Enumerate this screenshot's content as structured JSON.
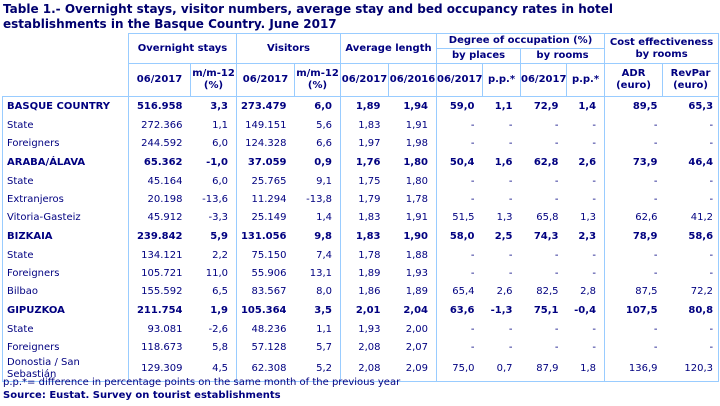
{
  "chart_data": {
    "type": "table",
    "title": "Table 1.- Overnight stays, visitor numbers, average stay and bed occupancy rates in hotel establishments in the Basque Country. June 2017",
    "header": {
      "overnight_stays": "Overnight stays",
      "visitors": "Visitors",
      "average_length": "Average length",
      "occupation": "Degree of occupation (%)",
      "by_places": "by places",
      "by_rooms": "by rooms",
      "cost_effectiveness": "Cost effectiveness by rooms",
      "col_062017": "06/2017",
      "col_mm12": "m/m-12 (%)",
      "col_062016": "06/2016",
      "col_pp": "p.p.*",
      "adr": "ADR (euro)",
      "revpar": "RevPar (euro)"
    },
    "columns": [
      "",
      "Overnight stays 06/2017",
      "Overnight stays m/m-12 (%)",
      "Visitors 06/2017",
      "Visitors m/m-12 (%)",
      "Average length 06/2017",
      "Average length 06/2016",
      "Occupation by places 06/2017",
      "Occupation by places p.p.*",
      "Occupation by rooms 06/2017",
      "Occupation by rooms p.p.*",
      "ADR (euro)",
      "RevPar (euro)"
    ],
    "rows": [
      {
        "label": "BASQUE COUNTRY",
        "bold": true,
        "values": [
          "516.958",
          "3,3",
          "273.479",
          "6,0",
          "1,89",
          "1,94",
          "59,0",
          "1,1",
          "72,9",
          "1,4",
          "89,5",
          "65,3"
        ]
      },
      {
        "label": "State",
        "bold": false,
        "values": [
          "272.366",
          "1,1",
          "149.151",
          "5,6",
          "1,83",
          "1,91",
          "-",
          "-",
          "-",
          "-",
          "-",
          "-"
        ]
      },
      {
        "label": "Foreigners",
        "bold": false,
        "values": [
          "244.592",
          "6,0",
          "124.328",
          "6,6",
          "1,97",
          "1,98",
          "-",
          "-",
          "-",
          "-",
          "-",
          "-"
        ]
      },
      {
        "label": "ARABA/ÁLAVA",
        "bold": true,
        "values": [
          "65.362",
          "-1,0",
          "37.059",
          "0,9",
          "1,76",
          "1,80",
          "50,4",
          "1,6",
          "62,8",
          "2,6",
          "73,9",
          "46,4"
        ]
      },
      {
        "label": "State",
        "bold": false,
        "values": [
          "45.164",
          "6,0",
          "25.765",
          "9,1",
          "1,75",
          "1,80",
          "-",
          "-",
          "-",
          "-",
          "-",
          "-"
        ]
      },
      {
        "label": "Extranjeros",
        "bold": false,
        "values": [
          "20.198",
          "-13,6",
          "11.294",
          "-13,8",
          "1,79",
          "1,78",
          "-",
          "-",
          "-",
          "-",
          "-",
          "-"
        ]
      },
      {
        "label": "Vitoria-Gasteiz",
        "bold": false,
        "values": [
          "45.912",
          "-3,3",
          "25.149",
          "1,4",
          "1,83",
          "1,91",
          "51,5",
          "1,3",
          "65,8",
          "1,3",
          "62,6",
          "41,2"
        ]
      },
      {
        "label": "BIZKAIA",
        "bold": true,
        "values": [
          "239.842",
          "5,9",
          "131.056",
          "9,8",
          "1,83",
          "1,90",
          "58,0",
          "2,5",
          "74,3",
          "2,3",
          "78,9",
          "58,6"
        ]
      },
      {
        "label": "State",
        "bold": false,
        "values": [
          "134.121",
          "2,2",
          "75.150",
          "7,4",
          "1,78",
          "1,88",
          "-",
          "-",
          "-",
          "-",
          "-",
          "-"
        ]
      },
      {
        "label": "Foreigners",
        "bold": false,
        "values": [
          "105.721",
          "11,0",
          "55.906",
          "13,1",
          "1,89",
          "1,93",
          "-",
          "-",
          "-",
          "-",
          "-",
          "-"
        ]
      },
      {
        "label": "Bilbao",
        "bold": false,
        "values": [
          "155.592",
          "6,5",
          "83.567",
          "8,0",
          "1,86",
          "1,89",
          "65,4",
          "2,6",
          "82,5",
          "2,8",
          "87,5",
          "72,2"
        ]
      },
      {
        "label": "GIPUZKOA",
        "bold": true,
        "values": [
          "211.754",
          "1,9",
          "105.364",
          "3,5",
          "2,01",
          "2,04",
          "63,6",
          "-1,3",
          "75,1",
          "-0,4",
          "107,5",
          "80,8"
        ]
      },
      {
        "label": "State",
        "bold": false,
        "values": [
          "93.081",
          "-2,6",
          "48.236",
          "1,1",
          "1,93",
          "2,00",
          "-",
          "-",
          "-",
          "-",
          "-",
          "-"
        ]
      },
      {
        "label": "Foreigners",
        "bold": false,
        "values": [
          "118.673",
          "5,8",
          "57.128",
          "5,7",
          "2,08",
          "2,07",
          "-",
          "-",
          "-",
          "-",
          "-",
          "-"
        ]
      },
      {
        "label": "Donostia / San Sebastián",
        "bold": false,
        "values": [
          "129.309",
          "4,5",
          "62.308",
          "5,2",
          "2,08",
          "2,09",
          "75,0",
          "0,7",
          "87,9",
          "1,8",
          "136,9",
          "120,3"
        ]
      }
    ],
    "footnotes": {
      "note": "p.p.*= difference in percentage points on the same month of the previous year",
      "source": "Source: Eustat. Survey on tourist establishments"
    }
  },
  "colors": {
    "text_navy": "#000080",
    "title_navy": "#00006e",
    "border_light_blue": "#99ccff",
    "background": "#ffffff"
  }
}
